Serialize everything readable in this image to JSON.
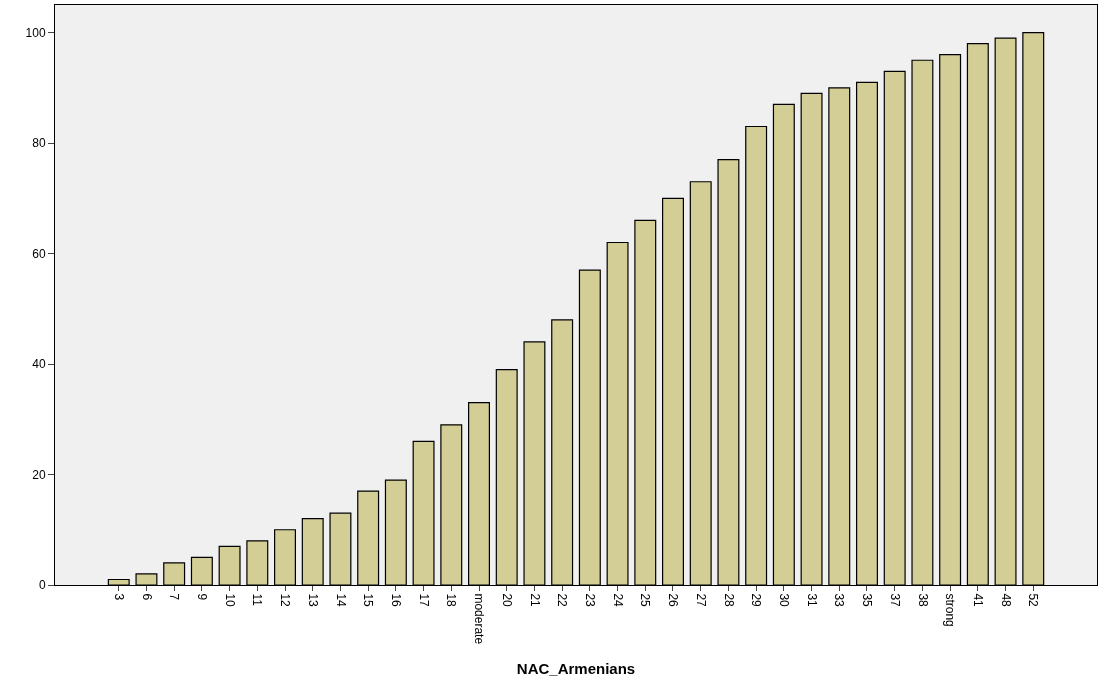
{
  "chart_data": {
    "type": "bar",
    "xlabel": "NAC_Armenians",
    "categories": [
      "3",
      "6",
      "7",
      "9",
      "10",
      "11",
      "12",
      "13",
      "14",
      "15",
      "16",
      "17",
      "18",
      "moderate",
      "20",
      "21",
      "22",
      "23",
      "24",
      "25",
      "26",
      "27",
      "28",
      "29",
      "30",
      "31",
      "33",
      "35",
      "37",
      "38",
      "strong",
      "41",
      "48",
      "52"
    ],
    "values": [
      1,
      2,
      4,
      5,
      7,
      8,
      10,
      12,
      13,
      17,
      19,
      26,
      29,
      33,
      39,
      44,
      48,
      57,
      62,
      66,
      70,
      73,
      77,
      83,
      87,
      89,
      90,
      91,
      93,
      95,
      96,
      98,
      99,
      100
    ],
    "color": "#d3cd96",
    "ylim": [
      0,
      105
    ],
    "yticks": [
      0,
      20,
      40,
      60,
      80,
      100
    ]
  }
}
